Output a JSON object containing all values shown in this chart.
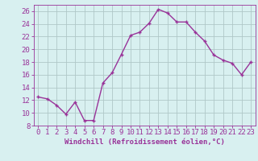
{
  "x": [
    0,
    1,
    2,
    3,
    4,
    5,
    6,
    7,
    8,
    9,
    10,
    11,
    12,
    13,
    14,
    15,
    16,
    17,
    18,
    19,
    20,
    21,
    22,
    23
  ],
  "y": [
    12.5,
    12.2,
    11.2,
    9.8,
    11.7,
    8.8,
    8.8,
    14.7,
    16.3,
    19.2,
    22.2,
    22.7,
    24.1,
    26.3,
    25.7,
    24.3,
    24.3,
    22.7,
    21.3,
    19.1,
    18.3,
    17.8,
    16.0,
    18.0
  ],
  "line_color": "#993399",
  "marker_color": "#993399",
  "bg_color": "#d8f0f0",
  "grid_color": "#b0c8c8",
  "axis_color": "#993399",
  "xlabel": "Windchill (Refroidissement éolien,°C)",
  "xlim": [
    -0.5,
    23.5
  ],
  "ylim": [
    8,
    27
  ],
  "yticks": [
    8,
    10,
    12,
    14,
    16,
    18,
    20,
    22,
    24,
    26
  ],
  "xticks": [
    0,
    1,
    2,
    3,
    4,
    5,
    6,
    7,
    8,
    9,
    10,
    11,
    12,
    13,
    14,
    15,
    16,
    17,
    18,
    19,
    20,
    21,
    22,
    23
  ],
  "xlabel_fontsize": 6.5,
  "tick_fontsize": 6.5,
  "line_width": 1.0,
  "marker_size": 2.5
}
